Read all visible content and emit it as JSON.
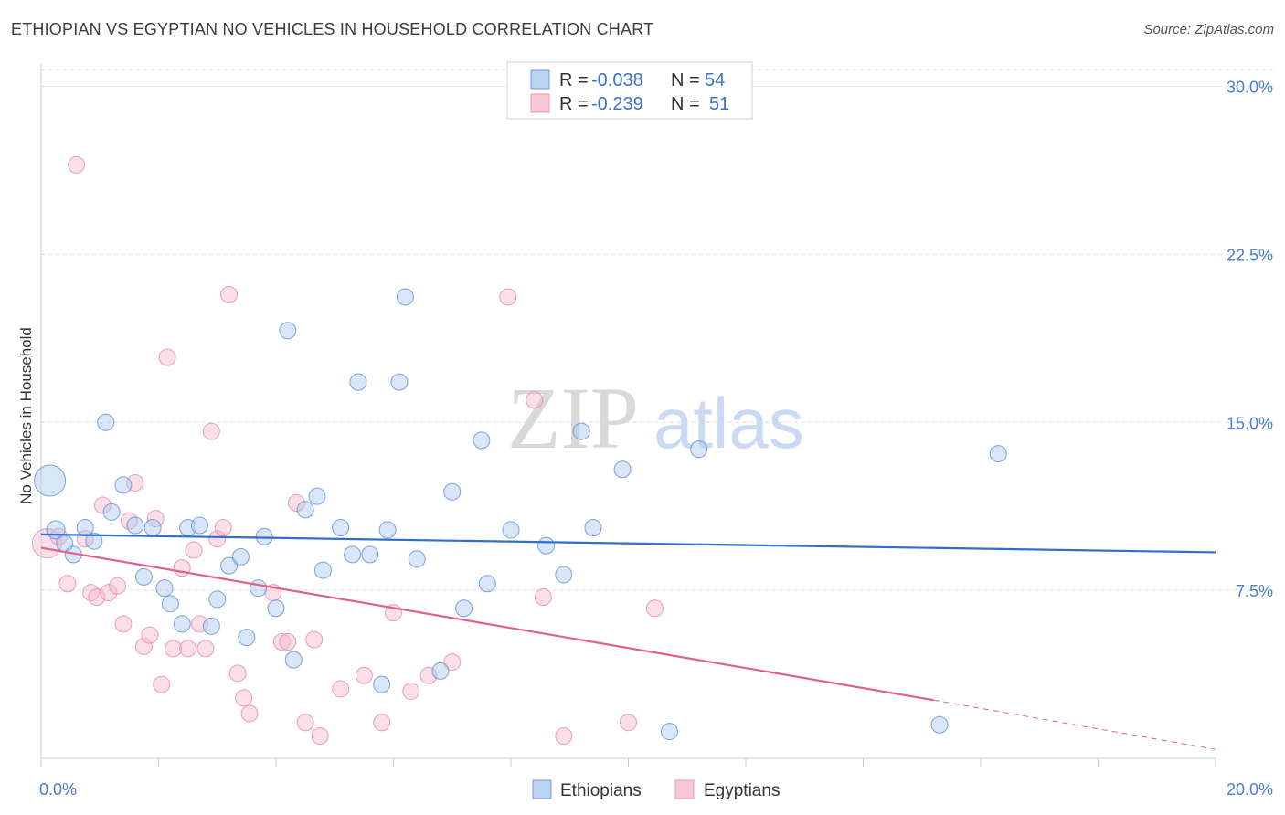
{
  "title": "ETHIOPIAN VS EGYPTIAN NO VEHICLES IN HOUSEHOLD CORRELATION CHART",
  "source": "Source: ZipAtlas.com",
  "watermark": {
    "zip": "ZIP",
    "atlas": "atlas"
  },
  "legend": {
    "rows": [
      {
        "r_label": "R =",
        "r_value": "-0.038",
        "n_label": "N =",
        "n_value": "54"
      },
      {
        "r_label": "R =",
        "r_value": "-0.239",
        "n_label": "N =",
        "n_value": "51"
      }
    ]
  },
  "colors": {
    "ethiopians_fill": "#a9c8f0",
    "ethiopians_stroke": "#5b8fd6",
    "ethiopians_line": "#2f6fcb",
    "egyptians_fill": "#f7b8cb",
    "egyptians_stroke": "#e48aa8",
    "egyptians_line": "#e0608f",
    "tick_label": "#4a7fd0",
    "grid": "#dcdcdc"
  },
  "chart_data": {
    "type": "scatter",
    "title": "ETHIOPIAN VS EGYPTIAN NO VEHICLES IN HOUSEHOLD CORRELATION CHART",
    "xlabel": "",
    "ylabel": "No Vehicles in Household",
    "xlim": [
      0,
      20
    ],
    "ylim": [
      0,
      31
    ],
    "x_ticks": [
      "0.0%",
      "20.0%"
    ],
    "y_ticks": [
      {
        "value": 7.5,
        "label": "7.5%"
      },
      {
        "value": 15.0,
        "label": "15.0%"
      },
      {
        "value": 22.5,
        "label": "22.5%"
      },
      {
        "value": 30.0,
        "label": "30.0%"
      }
    ],
    "grid": true,
    "legend_position": "bottom-center",
    "series": [
      {
        "name": "Ethiopians",
        "r": -0.038,
        "n": 54,
        "trend": {
          "x": [
            0,
            20
          ],
          "y": [
            10.0,
            9.2
          ]
        },
        "points": [
          [
            0.15,
            12.4,
            17
          ],
          [
            0.25,
            10.2,
            10
          ],
          [
            0.4,
            9.6,
            9
          ],
          [
            0.55,
            9.1,
            9
          ],
          [
            0.75,
            10.3,
            9
          ],
          [
            0.9,
            9.7,
            9
          ],
          [
            1.1,
            15.0,
            9
          ],
          [
            1.2,
            11.0,
            9
          ],
          [
            1.4,
            12.2,
            9
          ],
          [
            1.6,
            10.4,
            9
          ],
          [
            1.75,
            8.1,
            9
          ],
          [
            1.9,
            10.3,
            9
          ],
          [
            2.1,
            7.6,
            9
          ],
          [
            2.2,
            6.9,
            9
          ],
          [
            2.4,
            6.0,
            9
          ],
          [
            2.5,
            10.3,
            9
          ],
          [
            2.7,
            10.4,
            9
          ],
          [
            2.9,
            5.9,
            9
          ],
          [
            3.0,
            7.1,
            9
          ],
          [
            3.2,
            8.6,
            9
          ],
          [
            3.4,
            9.0,
            9
          ],
          [
            3.5,
            5.4,
            9
          ],
          [
            3.7,
            7.6,
            9
          ],
          [
            3.8,
            9.9,
            9
          ],
          [
            4.0,
            6.7,
            9
          ],
          [
            4.2,
            19.1,
            9
          ],
          [
            4.3,
            4.4,
            9
          ],
          [
            4.5,
            11.1,
            9
          ],
          [
            4.7,
            11.7,
            9
          ],
          [
            4.8,
            8.4,
            9
          ],
          [
            5.1,
            10.3,
            9
          ],
          [
            5.3,
            9.1,
            9
          ],
          [
            5.4,
            16.8,
            9
          ],
          [
            5.6,
            9.1,
            9
          ],
          [
            5.8,
            3.3,
            9
          ],
          [
            5.9,
            10.2,
            9
          ],
          [
            6.1,
            16.8,
            9
          ],
          [
            6.2,
            20.6,
            9
          ],
          [
            6.4,
            8.9,
            9
          ],
          [
            6.8,
            3.9,
            9
          ],
          [
            7.0,
            11.9,
            9
          ],
          [
            7.2,
            6.7,
            9
          ],
          [
            7.5,
            14.2,
            9
          ],
          [
            7.6,
            7.8,
            9
          ],
          [
            8.0,
            10.2,
            9
          ],
          [
            8.6,
            9.5,
            9
          ],
          [
            8.9,
            8.2,
            9
          ],
          [
            9.2,
            14.6,
            9
          ],
          [
            9.4,
            10.3,
            9
          ],
          [
            9.9,
            12.9,
            9
          ],
          [
            10.7,
            1.2,
            9
          ],
          [
            11.2,
            13.8,
            9
          ],
          [
            15.3,
            1.5,
            9
          ],
          [
            16.3,
            13.6,
            9
          ]
        ]
      },
      {
        "name": "Egyptians",
        "r": -0.239,
        "n": 51,
        "trend": {
          "x": [
            0,
            15.2
          ],
          "y": [
            9.4,
            2.6
          ]
        },
        "trend_dashed": {
          "x": [
            15.2,
            20.0
          ],
          "y": [
            2.6,
            0.4
          ]
        },
        "points": [
          [
            0.1,
            9.6,
            16
          ],
          [
            0.3,
            9.9,
            9
          ],
          [
            0.45,
            7.8,
            9
          ],
          [
            0.6,
            26.5,
            9
          ],
          [
            0.75,
            9.8,
            9
          ],
          [
            0.85,
            7.4,
            9
          ],
          [
            0.95,
            7.2,
            9
          ],
          [
            1.05,
            11.3,
            9
          ],
          [
            1.15,
            7.4,
            9
          ],
          [
            1.3,
            7.7,
            9
          ],
          [
            1.4,
            6.0,
            9
          ],
          [
            1.5,
            10.6,
            9
          ],
          [
            1.6,
            12.3,
            9
          ],
          [
            1.75,
            5.0,
            9
          ],
          [
            1.85,
            5.5,
            9
          ],
          [
            1.95,
            10.7,
            9
          ],
          [
            2.05,
            3.3,
            9
          ],
          [
            2.15,
            17.9,
            9
          ],
          [
            2.25,
            4.9,
            9
          ],
          [
            2.4,
            8.5,
            9
          ],
          [
            2.5,
            4.9,
            9
          ],
          [
            2.6,
            9.3,
            9
          ],
          [
            2.7,
            6.0,
            9
          ],
          [
            2.8,
            4.9,
            9
          ],
          [
            2.9,
            14.6,
            9
          ],
          [
            3.0,
            9.8,
            9
          ],
          [
            3.1,
            10.3,
            9
          ],
          [
            3.2,
            20.7,
            9
          ],
          [
            3.35,
            3.8,
            9
          ],
          [
            3.45,
            2.7,
            9
          ],
          [
            3.55,
            2.0,
            9
          ],
          [
            3.95,
            7.4,
            9
          ],
          [
            4.1,
            5.2,
            9
          ],
          [
            4.2,
            5.2,
            9
          ],
          [
            4.35,
            11.4,
            9
          ],
          [
            4.5,
            1.6,
            9
          ],
          [
            4.65,
            5.3,
            9
          ],
          [
            4.75,
            1.0,
            9
          ],
          [
            5.1,
            3.1,
            9
          ],
          [
            5.5,
            3.7,
            9
          ],
          [
            5.8,
            1.6,
            9
          ],
          [
            6.0,
            6.5,
            9
          ],
          [
            6.3,
            3.0,
            9
          ],
          [
            6.6,
            3.7,
            9
          ],
          [
            7.0,
            4.3,
            9
          ],
          [
            7.95,
            20.6,
            9
          ],
          [
            8.4,
            16.0,
            9
          ],
          [
            8.55,
            7.2,
            9
          ],
          [
            8.9,
            1.0,
            9
          ],
          [
            10.0,
            1.6,
            9
          ],
          [
            10.45,
            6.7,
            9
          ]
        ]
      }
    ]
  }
}
